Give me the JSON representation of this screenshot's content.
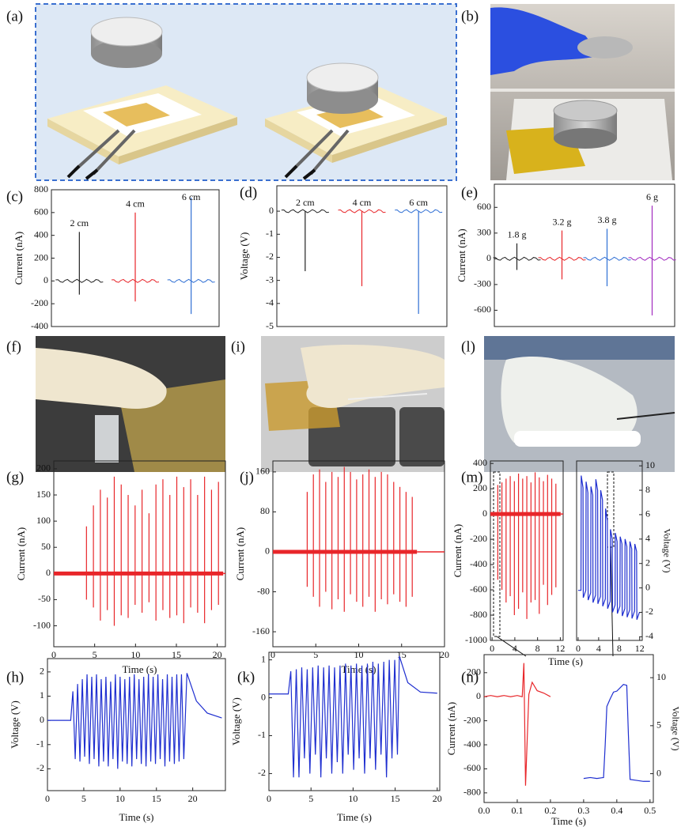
{
  "photo_panels": [
    "(a)",
    "(b)",
    "(f)",
    "(i)",
    "(l)"
  ],
  "chart_data": [
    {
      "type": "spike",
      "panel_label": "(c)",
      "ylabel": "Current (nA)",
      "ylim": [
        -400,
        800
      ],
      "yticks": [
        -400,
        -200,
        0,
        200,
        400,
        600,
        800
      ],
      "series": [
        {
          "name": "2 cm",
          "color": "#222222",
          "values": [
            430,
            -120
          ]
        },
        {
          "name": "4 cm",
          "color": "#e8262a",
          "values": [
            600,
            -180
          ]
        },
        {
          "name": "6 cm",
          "color": "#2f6fd4",
          "values": [
            730,
            -290
          ]
        }
      ]
    },
    {
      "type": "spike",
      "panel_label": "(d)",
      "ylabel": "Voltage (V)",
      "ylim": [
        -5,
        1.1
      ],
      "yticks": [
        -5,
        -4,
        -3,
        -2,
        -1,
        0
      ],
      "series": [
        {
          "name": "2 cm",
          "color": "#222222",
          "values": [
            -2.6
          ]
        },
        {
          "name": "4 cm",
          "color": "#e8262a",
          "values": [
            -3.25
          ]
        },
        {
          "name": "6 cm",
          "color": "#2f6fd4",
          "values": [
            -4.45
          ]
        }
      ]
    },
    {
      "type": "spike",
      "panel_label": "(e)",
      "ylabel": "Current (nA)",
      "ylim": [
        -790,
        870
      ],
      "yticks": [
        -600,
        -300,
        0,
        300,
        600
      ],
      "series": [
        {
          "name": "1.8 g",
          "color": "#222222",
          "values": [
            180,
            -130
          ]
        },
        {
          "name": "3.2 g",
          "color": "#e8262a",
          "values": [
            330,
            -240
          ]
        },
        {
          "name": "3.8 g",
          "color": "#2f6fd4",
          "values": [
            350,
            -320
          ]
        },
        {
          "name": "6 g",
          "color": "#a12bbf",
          "values": [
            620,
            -660
          ]
        }
      ]
    },
    {
      "type": "spike",
      "panel_label": "(g)",
      "xlabel": "Time (s)",
      "ylabel": "Current (nA)",
      "xlim": [
        0,
        21
      ],
      "xticks": [
        0,
        5,
        10,
        15,
        20
      ],
      "ylim": [
        -140,
        215
      ],
      "yticks": [
        -100,
        -50,
        0,
        50,
        100,
        150,
        200
      ],
      "series": [
        {
          "color": "#e8262a",
          "x": [
            4.0,
            4.85,
            5.7,
            6.55,
            7.4,
            8.25,
            9.1,
            9.95,
            10.8,
            11.65,
            12.5,
            13.35,
            14.2,
            15.05,
            15.9,
            16.75,
            17.6,
            18.45,
            19.3,
            20.15
          ],
          "values": [
            90,
            130,
            160,
            145,
            185,
            170,
            150,
            130,
            160,
            115,
            170,
            180,
            150,
            185,
            165,
            180,
            150,
            185,
            160,
            175
          ]
        },
        {
          "color": "#e8262a",
          "x": [
            4.0,
            4.85,
            5.7,
            6.55,
            7.4,
            8.25,
            9.1,
            9.95,
            10.8,
            11.65,
            12.5,
            13.35,
            14.2,
            15.05,
            15.9,
            16.75,
            17.6,
            18.45,
            19.3,
            20.15
          ],
          "values": [
            -50,
            -65,
            -90,
            -70,
            -100,
            -80,
            -85,
            -60,
            -75,
            -55,
            -90,
            -70,
            -85,
            -80,
            -95,
            -65,
            -75,
            -95,
            -70,
            -60
          ]
        }
      ]
    },
    {
      "type": "spike",
      "panel_label": "(j)",
      "xlabel": "Time (s)",
      "ylabel": "Current (nA)",
      "xlim": [
        0,
        20
      ],
      "xticks": [
        0,
        5,
        10,
        15,
        20
      ],
      "ylim": [
        -190,
        182
      ],
      "yticks": [
        -160,
        -80,
        0,
        80,
        160
      ],
      "series": [
        {
          "color": "#e8262a",
          "x": [
            4.0,
            4.72,
            5.44,
            6.16,
            6.88,
            7.6,
            8.32,
            9.04,
            9.76,
            10.48,
            11.2,
            11.92,
            12.64,
            13.36,
            14.08,
            14.8,
            15.52,
            16.24
          ],
          "values": [
            120,
            155,
            165,
            140,
            160,
            150,
            170,
            160,
            145,
            155,
            165,
            150,
            160,
            155,
            140,
            130,
            120,
            110
          ]
        },
        {
          "color": "#e8262a",
          "x": [
            4.0,
            4.72,
            5.44,
            6.16,
            6.88,
            7.6,
            8.32,
            9.04,
            9.76,
            10.48,
            11.2,
            11.92,
            12.64,
            13.36,
            14.08,
            14.8,
            15.52,
            16.24
          ],
          "values": [
            -70,
            -90,
            -110,
            -80,
            -115,
            -95,
            -120,
            -85,
            -100,
            -110,
            -90,
            -120,
            -95,
            -105,
            -85,
            -100,
            -110,
            -90
          ]
        }
      ]
    },
    {
      "type": "spike",
      "panel_label": "(m)",
      "xlabel": "Time (s)",
      "ylabel": "Current (nA)",
      "xlim": [
        -0.3,
        12.5
      ],
      "xticks": [
        0,
        4,
        8,
        12
      ],
      "ylim": [
        -1000,
        420
      ],
      "yticks": [
        -1000,
        -800,
        -600,
        -400,
        -200,
        0,
        200,
        400
      ],
      "series": [
        {
          "color": "#e8262a",
          "x": [
            1.0,
            1.73,
            2.46,
            3.19,
            3.92,
            4.65,
            5.38,
            6.11,
            6.84,
            7.57,
            8.3,
            9.03,
            9.76,
            10.49,
            11.22
          ],
          "values": [
            230,
            250,
            280,
            300,
            260,
            320,
            280,
            300,
            250,
            330,
            290,
            260,
            310,
            280,
            240
          ]
        },
        {
          "color": "#e8262a",
          "x": [
            1.0,
            1.73,
            2.46,
            3.19,
            3.92,
            4.65,
            5.38,
            6.11,
            6.84,
            7.57,
            8.3,
            9.03,
            9.76,
            10.49,
            11.22
          ],
          "values": [
            -520,
            -600,
            -700,
            -650,
            -800,
            -750,
            -620,
            -830,
            -700,
            -680,
            -790,
            -560,
            -720,
            -640,
            -580
          ]
        }
      ]
    },
    {
      "type": "line",
      "y2label": "Voltage (V)",
      "xlim": [
        -0.3,
        12.5
      ],
      "xticks": [
        0,
        4,
        8,
        12
      ],
      "y2lim": [
        -4.3,
        10.4
      ],
      "y2ticks": [
        -4,
        -2,
        0,
        2,
        4,
        6,
        8,
        10
      ],
      "series": [
        {
          "color": "#1f2fd0",
          "axis": "y2",
          "x": [
            0,
            0.55,
            0.6,
            0.95,
            1.0,
            1.5,
            1.55,
            1.9,
            1.95,
            2.45,
            2.5,
            2.85,
            2.9,
            3.4,
            3.45,
            3.8,
            3.85,
            4.35,
            4.4,
            4.75,
            4.8,
            5.3,
            5.35,
            5.7,
            5.75,
            6.25,
            6.3,
            6.65,
            6.7,
            7.2,
            7.25,
            7.6,
            7.65,
            8.15,
            8.2,
            8.55,
            8.6,
            9.1,
            9.15,
            9.5,
            9.55,
            10.05,
            10.1,
            10.45,
            10.5,
            11.0,
            11.05,
            11.4,
            11.45,
            11.95
          ],
          "values": [
            -0.2,
            -0.2,
            9.2,
            8.2,
            -0.8,
            -0.2,
            8.7,
            7.8,
            -1.0,
            -0.4,
            8.3,
            7.6,
            -1.2,
            -0.6,
            8.9,
            8.0,
            -1.3,
            -0.7,
            8.0,
            7.2,
            -1.5,
            -0.9,
            6.5,
            5.5,
            -1.7,
            -1.1,
            4.8,
            4.0,
            -2.0,
            -1.4,
            4.5,
            3.8,
            -2.1,
            -1.5,
            4.2,
            3.6,
            -2.3,
            -1.7,
            4.0,
            3.4,
            -2.4,
            -1.8,
            3.8,
            3.2,
            -2.5,
            -1.9,
            3.6,
            3.0,
            -2.6,
            -2.0
          ]
        }
      ]
    },
    {
      "type": "line",
      "panel_label": "(h)",
      "xlabel": "Time (s)",
      "ylabel": "Voltage (V)",
      "xlim": [
        0,
        24.5
      ],
      "xticks": [
        0,
        5,
        10,
        15,
        20
      ],
      "ylim": [
        -2.9,
        2.55
      ],
      "yticks": [
        -2,
        -1,
        0,
        1,
        2
      ],
      "series": [
        {
          "color": "#1f2fd0",
          "x": [
            0,
            3.2,
            3.5,
            3.82,
            4.15,
            4.47,
            4.8,
            5.12,
            5.45,
            5.77,
            6.1,
            6.42,
            6.75,
            7.07,
            7.4,
            7.72,
            8.05,
            8.37,
            8.7,
            9.02,
            9.35,
            9.67,
            10.0,
            10.32,
            10.65,
            10.97,
            11.3,
            11.62,
            11.95,
            12.27,
            12.6,
            12.92,
            13.25,
            13.57,
            13.9,
            14.22,
            14.55,
            14.87,
            15.2,
            15.52,
            15.85,
            16.17,
            16.5,
            16.82,
            17.15,
            17.47,
            17.8,
            18.12,
            18.45,
            18.77,
            19.2,
            20.5,
            22,
            24
          ],
          "values": [
            0,
            0,
            1.2,
            -1.6,
            1.5,
            -1.7,
            1.7,
            -1.5,
            1.9,
            -1.8,
            1.8,
            -1.6,
            1.9,
            -1.9,
            1.7,
            -1.7,
            1.8,
            -1.9,
            1.6,
            -1.6,
            1.9,
            -2.0,
            1.8,
            -1.7,
            1.7,
            -1.8,
            1.8,
            -1.9,
            1.9,
            -1.6,
            1.7,
            -1.8,
            1.8,
            -1.9,
            1.9,
            -1.7,
            1.8,
            -1.8,
            1.9,
            -1.6,
            1.7,
            -1.9,
            1.9,
            -1.7,
            1.8,
            -1.8,
            1.9,
            -1.7,
            1.9,
            -1.6,
            1.95,
            0.8,
            0.3,
            0.1
          ]
        }
      ]
    },
    {
      "type": "line",
      "panel_label": "(k)",
      "xlabel": "Time (s)",
      "ylabel": "Voltage (V)",
      "xlim": [
        0,
        20.3
      ],
      "xticks": [
        0,
        5,
        10,
        15,
        20
      ],
      "ylim": [
        -2.45,
        1.2
      ],
      "yticks": [
        -2,
        -1,
        0,
        1
      ],
      "series": [
        {
          "color": "#1f2fd0",
          "x": [
            0,
            2.3,
            2.6,
            2.92,
            3.25,
            3.57,
            3.9,
            4.22,
            4.55,
            4.87,
            5.2,
            5.52,
            5.85,
            6.17,
            6.5,
            6.82,
            7.15,
            7.47,
            7.8,
            8.12,
            8.45,
            8.77,
            9.1,
            9.42,
            9.75,
            10.07,
            10.4,
            10.72,
            11.05,
            11.37,
            11.7,
            12.02,
            12.35,
            12.67,
            13.0,
            13.32,
            13.65,
            13.97,
            14.3,
            14.62,
            14.95,
            15.27,
            15.5,
            16.5,
            18,
            20
          ],
          "values": [
            0.1,
            0.1,
            0.7,
            -2.1,
            0.75,
            -2.1,
            0.8,
            -1.6,
            0.75,
            -2.0,
            0.8,
            -1.5,
            0.85,
            -2.1,
            0.8,
            -1.6,
            0.85,
            -2.0,
            0.8,
            -1.7,
            0.85,
            -2.0,
            0.9,
            -1.5,
            0.85,
            -1.9,
            0.9,
            -1.6,
            0.85,
            -2.0,
            0.9,
            -1.6,
            0.95,
            -1.9,
            0.9,
            -1.5,
            0.95,
            -2.1,
            1.0,
            -1.6,
            1.0,
            -1.5,
            1.1,
            0.4,
            0.15,
            0.12
          ]
        }
      ]
    },
    {
      "type": "line",
      "panel_label": "(n)",
      "xlabel": "Time (s)",
      "ylabel": "Current (nA)",
      "y2label": "Voltage (V)",
      "xlim": [
        0,
        0.51
      ],
      "xticks": [
        {
          "value": 0,
          "label": "0.0"
        },
        0.1,
        0.2,
        0.3,
        0.4,
        0.5
      ],
      "ylim": [
        -880,
        350
      ],
      "yticks": [
        -800,
        -600,
        -400,
        -200,
        0,
        200
      ],
      "y2lim": [
        -3,
        12.4
      ],
      "y2ticks": [
        0,
        5,
        10
      ],
      "series": [
        {
          "color": "#e8262a",
          "x": [
            0,
            0.02,
            0.04,
            0.06,
            0.08,
            0.1,
            0.115,
            0.12,
            0.125,
            0.135,
            0.145,
            0.16,
            0.18,
            0.2
          ],
          "values": [
            0,
            10,
            0,
            10,
            0,
            10,
            0,
            280,
            -740,
            20,
            120,
            50,
            30,
            0
          ]
        },
        {
          "color": "#1f2fd0",
          "axis": "y2",
          "x": [
            0.3,
            0.32,
            0.34,
            0.36,
            0.365,
            0.37,
            0.38,
            0.39,
            0.4,
            0.42,
            0.43,
            0.435,
            0.44,
            0.46,
            0.48,
            0.5
          ],
          "values": [
            -0.5,
            -0.4,
            -0.5,
            -0.4,
            3,
            7,
            7.8,
            8.5,
            8.6,
            9.3,
            9.2,
            4,
            -0.6,
            -0.7,
            -0.8,
            -0.8
          ]
        }
      ]
    }
  ]
}
